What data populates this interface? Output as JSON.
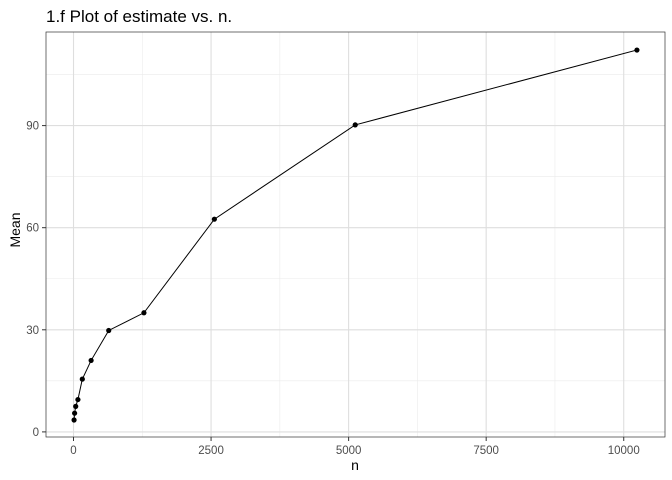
{
  "chart_data": {
    "type": "line",
    "title": "1.f Plot of estimate vs. n.",
    "xlabel": "n",
    "ylabel": "Mean",
    "xlim": [
      -500,
      10750
    ],
    "ylim": [
      -1.5,
      117.5
    ],
    "x_ticks": [
      0,
      2500,
      5000,
      7500,
      10000
    ],
    "x_tick_labels": [
      "0",
      "2500",
      "5000",
      "7500",
      "10000"
    ],
    "y_ticks": [
      0,
      30,
      60,
      90
    ],
    "y_tick_labels": [
      "0",
      "30",
      "60",
      "90"
    ],
    "grid": true,
    "legend": "none",
    "series": [
      {
        "line_color": "#000000",
        "points": [
          {
            "x": 10,
            "y": 3.5
          },
          {
            "x": 20,
            "y": 5.5
          },
          {
            "x": 40,
            "y": 7.5
          },
          {
            "x": 80,
            "y": 9.5
          },
          {
            "x": 160,
            "y": 15.5
          },
          {
            "x": 320,
            "y": 21
          },
          {
            "x": 640,
            "y": 29.8
          },
          {
            "x": 1280,
            "y": 35
          },
          {
            "x": 2560,
            "y": 62.5
          },
          {
            "x": 5120,
            "y": 90.2
          },
          {
            "x": 10240,
            "y": 112.2
          }
        ]
      }
    ]
  }
}
